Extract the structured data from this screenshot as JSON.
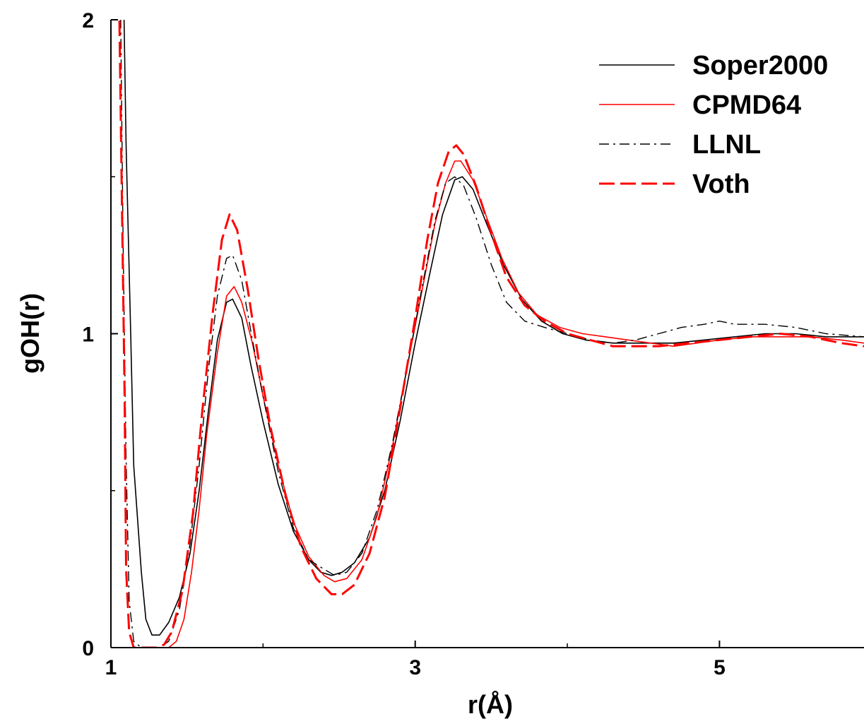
{
  "chart_data": {
    "type": "line",
    "xlabel": "r(Å)",
    "ylabel": "gOH(r)",
    "xlim": [
      1,
      5.95
    ],
    "ylim": [
      0,
      2
    ],
    "x_major_ticks": [
      1,
      3,
      5
    ],
    "x_tick_labels": [
      "1",
      "3",
      "5"
    ],
    "x_minor_ticks": [
      2,
      4
    ],
    "y_major_ticks": [
      0,
      1,
      2
    ],
    "y_tick_labels": [
      "0",
      "1",
      "2"
    ],
    "y_minor_ticks": [
      0.5,
      1.5
    ],
    "grid": false,
    "legend_position": "top-right",
    "series": [
      {
        "name": "Soper2000",
        "color": "#000000",
        "dash": "solid",
        "width": 1.6,
        "points": [
          [
            1.08,
            2.2
          ],
          [
            1.1,
            1.6
          ],
          [
            1.13,
            1.0
          ],
          [
            1.15,
            0.58
          ],
          [
            1.2,
            0.24
          ],
          [
            1.23,
            0.09
          ],
          [
            1.27,
            0.04
          ],
          [
            1.32,
            0.04
          ],
          [
            1.38,
            0.08
          ],
          [
            1.45,
            0.16
          ],
          [
            1.52,
            0.3
          ],
          [
            1.58,
            0.5
          ],
          [
            1.64,
            0.75
          ],
          [
            1.7,
            0.98
          ],
          [
            1.76,
            1.1
          ],
          [
            1.8,
            1.11
          ],
          [
            1.86,
            1.05
          ],
          [
            1.92,
            0.9
          ],
          [
            2.0,
            0.72
          ],
          [
            2.1,
            0.52
          ],
          [
            2.2,
            0.37
          ],
          [
            2.3,
            0.28
          ],
          [
            2.38,
            0.24
          ],
          [
            2.45,
            0.23
          ],
          [
            2.52,
            0.24
          ],
          [
            2.6,
            0.27
          ],
          [
            2.7,
            0.35
          ],
          [
            2.8,
            0.5
          ],
          [
            2.9,
            0.72
          ],
          [
            3.0,
            0.97
          ],
          [
            3.1,
            1.2
          ],
          [
            3.18,
            1.38
          ],
          [
            3.26,
            1.49
          ],
          [
            3.31,
            1.5
          ],
          [
            3.38,
            1.46
          ],
          [
            3.47,
            1.35
          ],
          [
            3.58,
            1.22
          ],
          [
            3.7,
            1.11
          ],
          [
            3.83,
            1.04
          ],
          [
            3.97,
            1.0
          ],
          [
            4.12,
            0.98
          ],
          [
            4.3,
            0.97
          ],
          [
            4.5,
            0.97
          ],
          [
            4.7,
            0.97
          ],
          [
            4.9,
            0.98
          ],
          [
            5.1,
            0.99
          ],
          [
            5.3,
            1.0
          ],
          [
            5.5,
            1.0
          ],
          [
            5.7,
            0.99
          ],
          [
            5.95,
            0.99
          ]
        ]
      },
      {
        "name": "CPMD64",
        "color": "#ff0000",
        "dash": "solid",
        "width": 1.6,
        "points": [
          [
            1.3,
            0.0
          ],
          [
            1.38,
            0.0
          ],
          [
            1.43,
            0.02
          ],
          [
            1.48,
            0.09
          ],
          [
            1.53,
            0.24
          ],
          [
            1.58,
            0.44
          ],
          [
            1.63,
            0.68
          ],
          [
            1.7,
            0.94
          ],
          [
            1.76,
            1.12
          ],
          [
            1.81,
            1.15
          ],
          [
            1.86,
            1.1
          ],
          [
            1.93,
            0.97
          ],
          [
            2.0,
            0.8
          ],
          [
            2.1,
            0.58
          ],
          [
            2.2,
            0.4
          ],
          [
            2.3,
            0.29
          ],
          [
            2.4,
            0.23
          ],
          [
            2.47,
            0.21
          ],
          [
            2.55,
            0.22
          ],
          [
            2.65,
            0.28
          ],
          [
            2.75,
            0.42
          ],
          [
            2.85,
            0.64
          ],
          [
            2.95,
            0.9
          ],
          [
            3.05,
            1.15
          ],
          [
            3.13,
            1.35
          ],
          [
            3.2,
            1.48
          ],
          [
            3.26,
            1.55
          ],
          [
            3.3,
            1.55
          ],
          [
            3.38,
            1.49
          ],
          [
            3.47,
            1.37
          ],
          [
            3.57,
            1.24
          ],
          [
            3.68,
            1.13
          ],
          [
            3.8,
            1.06
          ],
          [
            3.95,
            1.02
          ],
          [
            4.1,
            1.0
          ],
          [
            4.25,
            0.99
          ],
          [
            4.4,
            0.98
          ],
          [
            4.55,
            0.97
          ],
          [
            4.7,
            0.96
          ],
          [
            4.85,
            0.97
          ],
          [
            5.0,
            0.98
          ],
          [
            5.2,
            0.99
          ],
          [
            5.4,
            0.99
          ],
          [
            5.6,
            0.99
          ],
          [
            5.8,
            0.98
          ],
          [
            5.95,
            0.97
          ]
        ]
      },
      {
        "name": "LLNL",
        "color": "#000000",
        "dash": "dashdot",
        "width": 1.4,
        "points": [
          [
            1.06,
            2.2
          ],
          [
            1.08,
            1.3
          ],
          [
            1.1,
            0.6
          ],
          [
            1.12,
            0.15
          ],
          [
            1.15,
            0.02
          ],
          [
            1.2,
            0.0
          ],
          [
            1.32,
            0.0
          ],
          [
            1.38,
            0.02
          ],
          [
            1.45,
            0.12
          ],
          [
            1.52,
            0.33
          ],
          [
            1.58,
            0.58
          ],
          [
            1.64,
            0.88
          ],
          [
            1.7,
            1.12
          ],
          [
            1.76,
            1.24
          ],
          [
            1.8,
            1.25
          ],
          [
            1.86,
            1.17
          ],
          [
            1.93,
            0.98
          ],
          [
            2.0,
            0.8
          ],
          [
            2.1,
            0.56
          ],
          [
            2.2,
            0.38
          ],
          [
            2.3,
            0.28
          ],
          [
            2.4,
            0.25
          ],
          [
            2.47,
            0.23
          ],
          [
            2.55,
            0.24
          ],
          [
            2.65,
            0.3
          ],
          [
            2.75,
            0.44
          ],
          [
            2.85,
            0.65
          ],
          [
            2.95,
            0.9
          ],
          [
            3.05,
            1.16
          ],
          [
            3.13,
            1.36
          ],
          [
            3.2,
            1.48
          ],
          [
            3.26,
            1.5
          ],
          [
            3.32,
            1.47
          ],
          [
            3.4,
            1.37
          ],
          [
            3.5,
            1.22
          ],
          [
            3.6,
            1.1
          ],
          [
            3.72,
            1.04
          ],
          [
            3.85,
            1.02
          ],
          [
            4.0,
            1.0
          ],
          [
            4.15,
            0.98
          ],
          [
            4.3,
            0.97
          ],
          [
            4.45,
            0.98
          ],
          [
            4.6,
            1.0
          ],
          [
            4.75,
            1.02
          ],
          [
            4.9,
            1.03
          ],
          [
            5.0,
            1.04
          ],
          [
            5.1,
            1.03
          ],
          [
            5.3,
            1.03
          ],
          [
            5.5,
            1.02
          ],
          [
            5.7,
            1.0
          ],
          [
            5.95,
            0.99
          ]
        ]
      },
      {
        "name": "Voth",
        "color": "#ff0000",
        "dash": "longdash",
        "width": 3,
        "points": [
          [
            1.05,
            2.2
          ],
          [
            1.07,
            1.5
          ],
          [
            1.09,
            0.8
          ],
          [
            1.1,
            0.25
          ],
          [
            1.12,
            0.05
          ],
          [
            1.15,
            0.0
          ],
          [
            1.3,
            0.0
          ],
          [
            1.35,
            0.01
          ],
          [
            1.4,
            0.05
          ],
          [
            1.47,
            0.18
          ],
          [
            1.54,
            0.43
          ],
          [
            1.6,
            0.75
          ],
          [
            1.67,
            1.07
          ],
          [
            1.73,
            1.3
          ],
          [
            1.78,
            1.38
          ],
          [
            1.83,
            1.33
          ],
          [
            1.9,
            1.14
          ],
          [
            1.97,
            0.92
          ],
          [
            2.05,
            0.7
          ],
          [
            2.15,
            0.48
          ],
          [
            2.25,
            0.32
          ],
          [
            2.35,
            0.22
          ],
          [
            2.45,
            0.17
          ],
          [
            2.52,
            0.17
          ],
          [
            2.6,
            0.2
          ],
          [
            2.7,
            0.3
          ],
          [
            2.8,
            0.48
          ],
          [
            2.9,
            0.76
          ],
          [
            3.0,
            1.05
          ],
          [
            3.08,
            1.3
          ],
          [
            3.15,
            1.48
          ],
          [
            3.22,
            1.58
          ],
          [
            3.27,
            1.6
          ],
          [
            3.32,
            1.57
          ],
          [
            3.4,
            1.47
          ],
          [
            3.5,
            1.32
          ],
          [
            3.6,
            1.18
          ],
          [
            3.72,
            1.09
          ],
          [
            3.85,
            1.04
          ],
          [
            4.0,
            1.0
          ],
          [
            4.15,
            0.98
          ],
          [
            4.3,
            0.96
          ],
          [
            4.45,
            0.96
          ],
          [
            4.6,
            0.96
          ],
          [
            4.8,
            0.97
          ],
          [
            5.0,
            0.98
          ],
          [
            5.2,
            0.99
          ],
          [
            5.4,
            1.0
          ],
          [
            5.6,
            0.99
          ],
          [
            5.8,
            0.97
          ],
          [
            5.95,
            0.96
          ]
        ]
      }
    ]
  }
}
